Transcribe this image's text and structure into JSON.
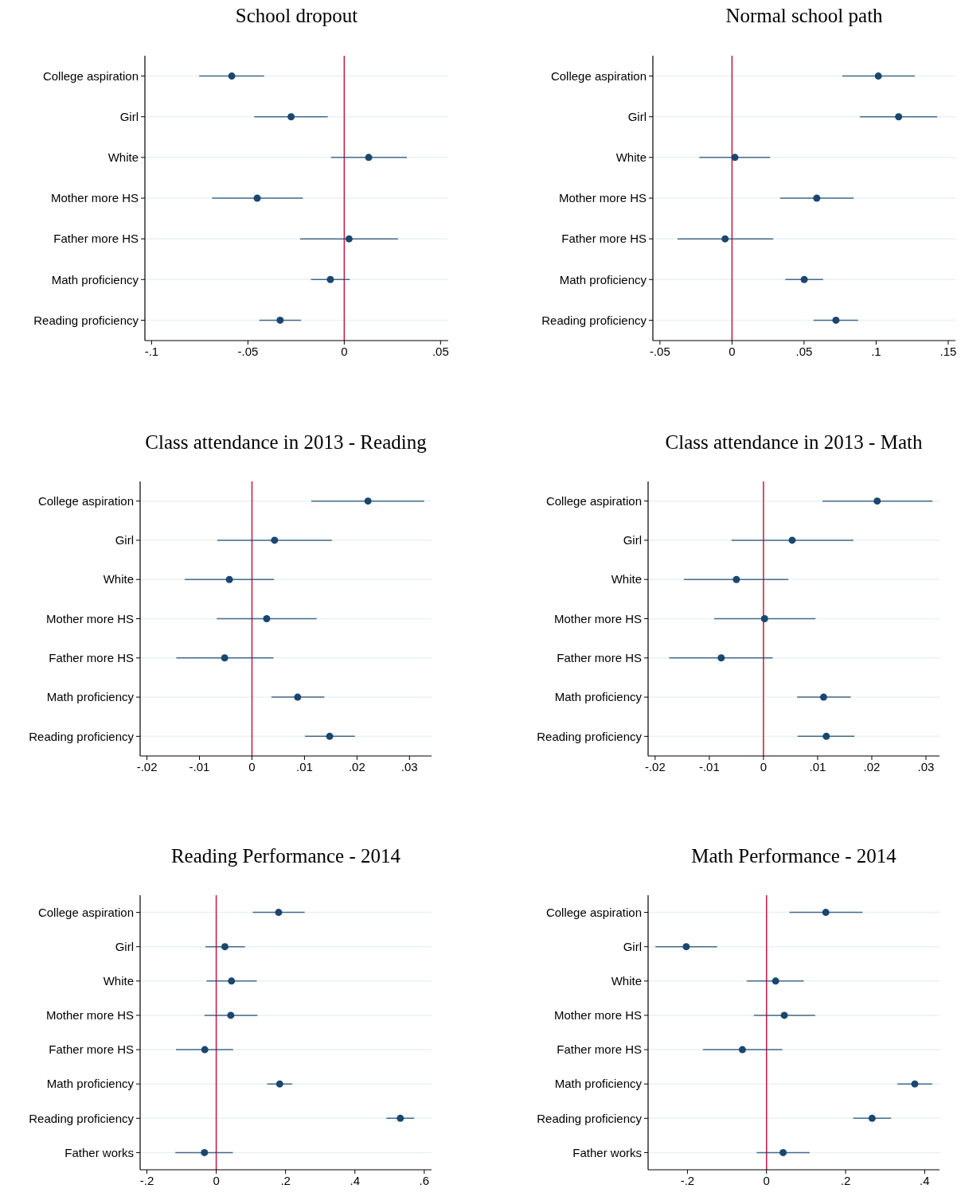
{
  "chart_data": [
    {
      "type": "scatter",
      "orientation": "horizontal",
      "title": "School dropout",
      "categories": [
        "College aspiration",
        "Girl",
        "White",
        "Mother more HS",
        "Father more HS",
        "Math proficiency",
        "Reading proficiency"
      ],
      "xlim": [
        -0.1035,
        0.054
      ],
      "xticks": [
        {
          "value": -0.1,
          "label": "-.1"
        },
        {
          "value": -0.05,
          "label": "-.05"
        },
        {
          "value": 0,
          "label": "0"
        },
        {
          "value": 0.05,
          "label": ".05"
        }
      ],
      "grid": "y",
      "marker": "circle",
      "ref_lines": [
        {
          "axis": "x",
          "value": 0,
          "color": "#c8163f"
        }
      ],
      "series": [
        {
          "color": "#1a476f",
          "values": [
            -0.0584,
            -0.0276,
            0.0127,
            -0.0452,
            0.0025,
            -0.0072,
            -0.0333
          ],
          "errors": [
            [
              -0.0753,
              -0.0416
            ],
            [
              -0.0467,
              -0.0086
            ],
            [
              -0.0069,
              0.0325
            ],
            [
              -0.0686,
              -0.0215
            ],
            [
              -0.0229,
              0.0279
            ],
            [
              -0.0173,
              0.0029
            ],
            [
              -0.0441,
              -0.0224
            ]
          ]
        }
      ]
    },
    {
      "type": "scatter",
      "orientation": "horizontal",
      "title": "Normal school path",
      "categories": [
        "College aspiration",
        "Girl",
        "White",
        "Mother more HS",
        "Father more HS",
        "Math proficiency",
        "Reading proficiency"
      ],
      "xlim": [
        -0.0549,
        0.155
      ],
      "xticks": [
        {
          "value": -0.05,
          "label": "-.05"
        },
        {
          "value": 0,
          "label": "0"
        },
        {
          "value": 0.05,
          "label": ".05"
        },
        {
          "value": 0.1,
          "label": ".1"
        },
        {
          "value": 0.15,
          "label": ".15"
        }
      ],
      "grid": "y",
      "marker": "circle",
      "ref_lines": [
        {
          "axis": "x",
          "value": 0,
          "color": "#c8163f"
        }
      ],
      "series": [
        {
          "color": "#1a476f",
          "values": [
            0.1015,
            0.1156,
            0.002,
            0.0588,
            -0.0048,
            0.0501,
            0.0721
          ],
          "errors": [
            [
              0.0765,
              0.1268
            ],
            [
              0.0888,
              0.1423
            ],
            [
              -0.0227,
              0.0265
            ],
            [
              0.0334,
              0.0844
            ],
            [
              -0.0378,
              0.0286
            ],
            [
              0.037,
              0.0632
            ],
            [
              0.0566,
              0.0875
            ]
          ]
        }
      ]
    },
    {
      "type": "scatter",
      "orientation": "horizontal",
      "title": "Class attendance in 2013 - Reading",
      "categories": [
        "College aspiration",
        "Girl",
        "White",
        "Mother more HS",
        "Father more HS",
        "Math proficiency",
        "Reading proficiency"
      ],
      "xlim": [
        -0.0213,
        0.0342
      ],
      "xticks": [
        {
          "value": -0.02,
          "label": "-.02"
        },
        {
          "value": -0.01,
          "label": "-.01"
        },
        {
          "value": 0,
          "label": "0"
        },
        {
          "value": 0.01,
          "label": ".01"
        },
        {
          "value": 0.02,
          "label": ".02"
        },
        {
          "value": 0.03,
          "label": ".03"
        }
      ],
      "grid": "y",
      "marker": "circle",
      "ref_lines": [
        {
          "axis": "x",
          "value": 0,
          "color": "#c8163f"
        }
      ],
      "series": [
        {
          "color": "#1a476f",
          "values": [
            0.0221,
            0.0043,
            -0.0043,
            0.0028,
            -0.0052,
            0.0087,
            0.0148
          ],
          "errors": [
            [
              0.0113,
              0.0328
            ],
            [
              -0.0066,
              0.0152
            ],
            [
              -0.0128,
              0.0042
            ],
            [
              -0.0067,
              0.0123
            ],
            [
              -0.0144,
              0.0041
            ],
            [
              0.0037,
              0.0138
            ],
            [
              0.0101,
              0.0196
            ]
          ]
        }
      ]
    },
    {
      "type": "scatter",
      "orientation": "horizontal",
      "title": "Class attendance in 2013 - Math",
      "categories": [
        "College aspiration",
        "Girl",
        "White",
        "Mother more HS",
        "Father more HS",
        "Math proficiency",
        "Reading proficiency"
      ],
      "xlim": [
        -0.0213,
        0.0325
      ],
      "xticks": [
        {
          "value": -0.02,
          "label": "-.02"
        },
        {
          "value": -0.01,
          "label": "-.01"
        },
        {
          "value": 0,
          "label": "0"
        },
        {
          "value": 0.01,
          "label": ".01"
        },
        {
          "value": 0.02,
          "label": ".02"
        },
        {
          "value": 0.03,
          "label": ".03"
        }
      ],
      "grid": "y",
      "marker": "circle",
      "ref_lines": [
        {
          "axis": "x",
          "value": 0,
          "color": "#c8163f"
        }
      ],
      "series": [
        {
          "color": "#1a476f",
          "values": [
            0.021,
            0.0053,
            -0.005,
            0.0002,
            -0.0078,
            0.0111,
            0.0116
          ],
          "errors": [
            [
              0.0109,
              0.0312
            ],
            [
              -0.0059,
              0.0166
            ],
            [
              -0.0147,
              0.0046
            ],
            [
              -0.0091,
              0.0096
            ],
            [
              -0.0174,
              0.0017
            ],
            [
              0.0062,
              0.0161
            ],
            [
              0.0063,
              0.0168
            ]
          ]
        }
      ]
    },
    {
      "type": "scatter",
      "orientation": "horizontal",
      "title": "Reading Performance - 2014",
      "categories": [
        "College aspiration",
        "Girl",
        "White",
        "Mother more HS",
        "Father more HS",
        "Math proficiency",
        "Reading proficiency",
        "Father works"
      ],
      "xlim": [
        -0.2195,
        0.621
      ],
      "xticks": [
        {
          "value": -0.2,
          "label": "-.2"
        },
        {
          "value": 0,
          "label": "0"
        },
        {
          "value": 0.2,
          "label": ".2"
        },
        {
          "value": 0.4,
          "label": ".4"
        },
        {
          "value": 0.6,
          "label": ".6"
        }
      ],
      "grid": "y",
      "marker": "circle",
      "ref_lines": [
        {
          "axis": "x",
          "value": 0,
          "color": "#c8163f"
        }
      ],
      "series": [
        {
          "color": "#1a476f",
          "values": [
            0.18,
            0.025,
            0.044,
            0.042,
            -0.033,
            0.183,
            0.531,
            -0.034
          ],
          "errors": [
            [
              0.1055,
              0.255
            ],
            [
              -0.031,
              0.083
            ],
            [
              -0.028,
              0.117
            ],
            [
              -0.034,
              0.119
            ],
            [
              -0.116,
              0.049
            ],
            [
              0.147,
              0.219
            ],
            [
              0.491,
              0.571
            ],
            [
              -0.118,
              0.048
            ]
          ]
        }
      ]
    },
    {
      "type": "scatter",
      "orientation": "horizontal",
      "title": "Math Performance - 2014",
      "categories": [
        "College aspiration",
        "Girl",
        "White",
        "Mother more HS",
        "Father more HS",
        "Math proficiency",
        "Reading proficiency",
        "Father works"
      ],
      "xlim": [
        -0.2995,
        0.4375
      ],
      "xticks": [
        {
          "value": -0.2,
          "label": "-.2"
        },
        {
          "value": 0,
          "label": "0"
        },
        {
          "value": 0.2,
          "label": ".2"
        },
        {
          "value": 0.4,
          "label": ".4"
        }
      ],
      "grid": "y",
      "marker": "circle",
      "ref_lines": [
        {
          "axis": "x",
          "value": 0,
          "color": "#c8163f"
        }
      ],
      "series": [
        {
          "color": "#1a476f",
          "values": [
            0.15,
            -0.203,
            0.023,
            0.045,
            -0.061,
            0.375,
            0.267,
            0.042
          ],
          "errors": [
            [
              0.058,
              0.243
            ],
            [
              -0.281,
              -0.125
            ],
            [
              -0.05,
              0.094
            ],
            [
              -0.032,
              0.123
            ],
            [
              -0.161,
              0.04
            ],
            [
              0.331,
              0.419
            ],
            [
              0.219,
              0.315
            ],
            [
              -0.025,
              0.109
            ]
          ]
        }
      ]
    }
  ]
}
